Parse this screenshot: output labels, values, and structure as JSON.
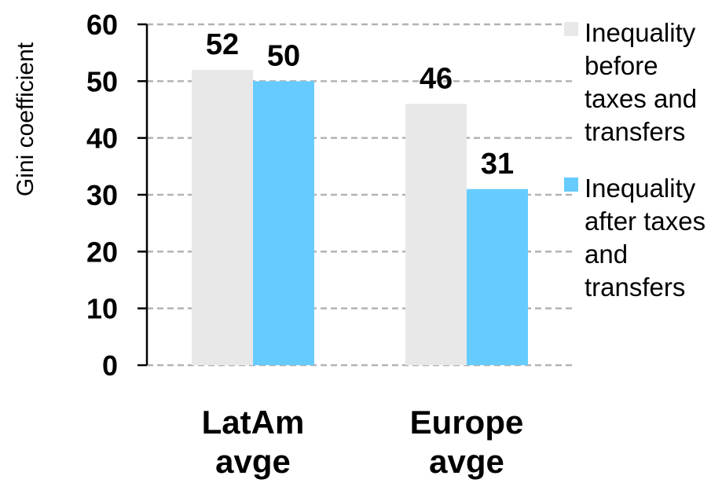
{
  "chart_data": {
    "type": "bar",
    "ylabel": "Gini coefficient",
    "xlabel": "",
    "ylim": [
      0,
      60
    ],
    "yticks": [
      0,
      10,
      20,
      30,
      40,
      50,
      60
    ],
    "grid": true,
    "legend_position": "right",
    "categories": [
      [
        "LatAm",
        "avge"
      ],
      [
        "Europe",
        "avge"
      ]
    ],
    "series": [
      {
        "name": [
          "Inequality",
          "before",
          "taxes and",
          "transfers"
        ],
        "values": [
          52,
          46
        ],
        "color": "#e8e8e8"
      },
      {
        "name": [
          "Inequality",
          "after taxes",
          "and",
          "transfers"
        ],
        "values": [
          50,
          31
        ],
        "color": "#66ccff"
      }
    ]
  }
}
